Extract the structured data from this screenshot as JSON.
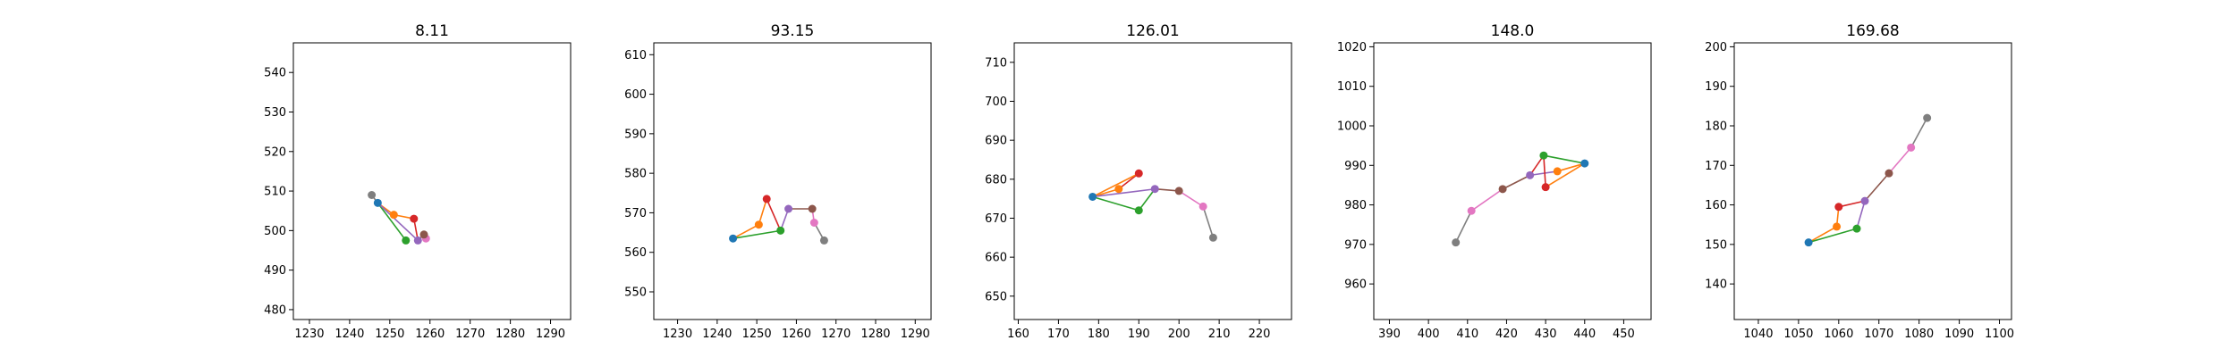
{
  "colors": {
    "blue": "#1f77b4",
    "orange": "#ff7f0e",
    "green": "#2ca02c",
    "red": "#d62728",
    "purple": "#9467bd",
    "brown": "#8c564b",
    "pink": "#e377c2",
    "gray": "#7f7f7f"
  },
  "chart_data": [
    {
      "type": "line",
      "title": "8.11",
      "xlabel": "",
      "ylabel": "",
      "xlim": [
        1226,
        1295
      ],
      "ylim": [
        477.5,
        547.5
      ],
      "xticks": [
        "1230",
        "1240",
        "1250",
        "1260",
        "1270",
        "1280",
        "1290"
      ],
      "yticks": [
        "480",
        "490",
        "500",
        "510",
        "520",
        "530",
        "540"
      ],
      "grid": false,
      "points": [
        [
          1245.5,
          509.0
        ],
        [
          1247.0,
          507.0
        ],
        [
          1251.0,
          504.0
        ],
        [
          1256.0,
          503.0
        ],
        [
          1254.0,
          497.5
        ],
        [
          1257.0,
          497.5
        ],
        [
          1259.0,
          498.0
        ],
        [
          1258.5,
          499.0
        ]
      ],
      "segments": [
        {
          "from": 0,
          "to": 1,
          "color": "gray"
        },
        {
          "from": 1,
          "to": 2,
          "color": "orange"
        },
        {
          "from": 2,
          "to": 3,
          "color": "orange"
        },
        {
          "from": 1,
          "to": 4,
          "color": "green"
        },
        {
          "from": 1,
          "to": 5,
          "color": "purple"
        },
        {
          "from": 3,
          "to": 5,
          "color": "red"
        },
        {
          "from": 5,
          "to": 7,
          "color": "brown"
        },
        {
          "from": 7,
          "to": 6,
          "color": "pink"
        }
      ],
      "marker_colors": [
        "gray",
        "blue",
        "orange",
        "red",
        "green",
        "purple",
        "pink",
        "brown"
      ]
    },
    {
      "type": "line",
      "title": "93.15",
      "xlabel": "",
      "ylabel": "",
      "xlim": [
        1224,
        1294
      ],
      "ylim": [
        543,
        613
      ],
      "xticks": [
        "1230",
        "1240",
        "1250",
        "1260",
        "1270",
        "1280",
        "1290"
      ],
      "yticks": [
        "550",
        "560",
        "570",
        "580",
        "590",
        "600",
        "610"
      ],
      "grid": false,
      "points": [
        [
          1244.0,
          563.5
        ],
        [
          1250.5,
          567.0
        ],
        [
          1252.5,
          573.5
        ],
        [
          1256.0,
          565.5
        ],
        [
          1258.0,
          571.0
        ],
        [
          1264.0,
          571.0
        ],
        [
          1264.5,
          567.5
        ],
        [
          1267.0,
          563.0
        ]
      ],
      "segments": [
        {
          "from": 0,
          "to": 1,
          "color": "orange"
        },
        {
          "from": 1,
          "to": 2,
          "color": "orange"
        },
        {
          "from": 0,
          "to": 3,
          "color": "green"
        },
        {
          "from": 2,
          "to": 3,
          "color": "red"
        },
        {
          "from": 3,
          "to": 4,
          "color": "purple"
        },
        {
          "from": 4,
          "to": 5,
          "color": "brown"
        },
        {
          "from": 5,
          "to": 6,
          "color": "pink"
        },
        {
          "from": 6,
          "to": 7,
          "color": "gray"
        }
      ],
      "marker_colors": [
        "blue",
        "orange",
        "red",
        "green",
        "purple",
        "brown",
        "pink",
        "gray"
      ]
    },
    {
      "type": "line",
      "title": "126.01",
      "xlabel": "",
      "ylabel": "",
      "xlim": [
        159,
        228
      ],
      "ylim": [
        644,
        715
      ],
      "xticks": [
        "160",
        "170",
        "180",
        "190",
        "200",
        "210",
        "220"
      ],
      "yticks": [
        "650",
        "660",
        "670",
        "680",
        "690",
        "700",
        "710"
      ],
      "grid": false,
      "points": [
        [
          178.5,
          675.5
        ],
        [
          185.0,
          677.5
        ],
        [
          190.0,
          681.5
        ],
        [
          190.0,
          672.0
        ],
        [
          194.0,
          677.5
        ],
        [
          200.0,
          677.0
        ],
        [
          206.0,
          673.0
        ],
        [
          208.5,
          665.0
        ]
      ],
      "segments": [
        {
          "from": 0,
          "to": 1,
          "color": "orange"
        },
        {
          "from": 1,
          "to": 2,
          "color": "red"
        },
        {
          "from": 0,
          "to": 2,
          "color": "orange"
        },
        {
          "from": 0,
          "to": 3,
          "color": "green"
        },
        {
          "from": 3,
          "to": 4,
          "color": "green"
        },
        {
          "from": 0,
          "to": 4,
          "color": "purple"
        },
        {
          "from": 4,
          "to": 5,
          "color": "brown"
        },
        {
          "from": 5,
          "to": 6,
          "color": "pink"
        },
        {
          "from": 6,
          "to": 7,
          "color": "gray"
        }
      ],
      "marker_colors": [
        "blue",
        "orange",
        "red",
        "green",
        "purple",
        "brown",
        "pink",
        "gray"
      ]
    },
    {
      "type": "line",
      "title": "148.0",
      "xlabel": "",
      "ylabel": "",
      "xlim": [
        386,
        457
      ],
      "ylim": [
        951,
        1021
      ],
      "xticks": [
        "390",
        "400",
        "410",
        "420",
        "430",
        "440",
        "450"
      ],
      "yticks": [
        "960",
        "970",
        "980",
        "990",
        "1000",
        "1010",
        "1020"
      ],
      "grid": false,
      "points": [
        [
          407.0,
          970.5
        ],
        [
          411.0,
          978.5
        ],
        [
          419.0,
          984.0
        ],
        [
          426.0,
          987.5
        ],
        [
          430.0,
          984.5
        ],
        [
          433.0,
          988.5
        ],
        [
          429.5,
          992.5
        ],
        [
          440.0,
          990.5
        ]
      ],
      "segments": [
        {
          "from": 0,
          "to": 1,
          "color": "gray"
        },
        {
          "from": 1,
          "to": 2,
          "color": "pink"
        },
        {
          "from": 2,
          "to": 3,
          "color": "brown"
        },
        {
          "from": 3,
          "to": 5,
          "color": "purple"
        },
        {
          "from": 3,
          "to": 6,
          "color": "red"
        },
        {
          "from": 4,
          "to": 6,
          "color": "red"
        },
        {
          "from": 6,
          "to": 7,
          "color": "green"
        },
        {
          "from": 5,
          "to": 7,
          "color": "orange"
        },
        {
          "from": 4,
          "to": 7,
          "color": "orange"
        }
      ],
      "marker_colors": [
        "gray",
        "pink",
        "brown",
        "purple",
        "red",
        "orange",
        "green",
        "blue"
      ]
    },
    {
      "type": "line",
      "title": "169.68",
      "xlabel": "",
      "ylabel": "",
      "xlim": [
        1034,
        1103
      ],
      "ylim": [
        131,
        201
      ],
      "xticks": [
        "1040",
        "1050",
        "1060",
        "1070",
        "1080",
        "1090",
        "1100"
      ],
      "yticks": [
        "140",
        "150",
        "160",
        "170",
        "180",
        "190",
        "200"
      ],
      "grid": false,
      "points": [
        [
          1052.5,
          150.5
        ],
        [
          1059.5,
          154.5
        ],
        [
          1060.0,
          159.5
        ],
        [
          1064.5,
          154.0
        ],
        [
          1066.5,
          161.0
        ],
        [
          1072.5,
          168.0
        ],
        [
          1078.0,
          174.5
        ],
        [
          1082.0,
          182.0
        ]
      ],
      "segments": [
        {
          "from": 0,
          "to": 1,
          "color": "orange"
        },
        {
          "from": 1,
          "to": 2,
          "color": "orange"
        },
        {
          "from": 0,
          "to": 3,
          "color": "green"
        },
        {
          "from": 2,
          "to": 4,
          "color": "red"
        },
        {
          "from": 3,
          "to": 4,
          "color": "purple"
        },
        {
          "from": 4,
          "to": 5,
          "color": "brown"
        },
        {
          "from": 5,
          "to": 6,
          "color": "pink"
        },
        {
          "from": 6,
          "to": 7,
          "color": "gray"
        }
      ],
      "marker_colors": [
        "blue",
        "orange",
        "red",
        "green",
        "purple",
        "brown",
        "pink",
        "gray"
      ]
    }
  ]
}
